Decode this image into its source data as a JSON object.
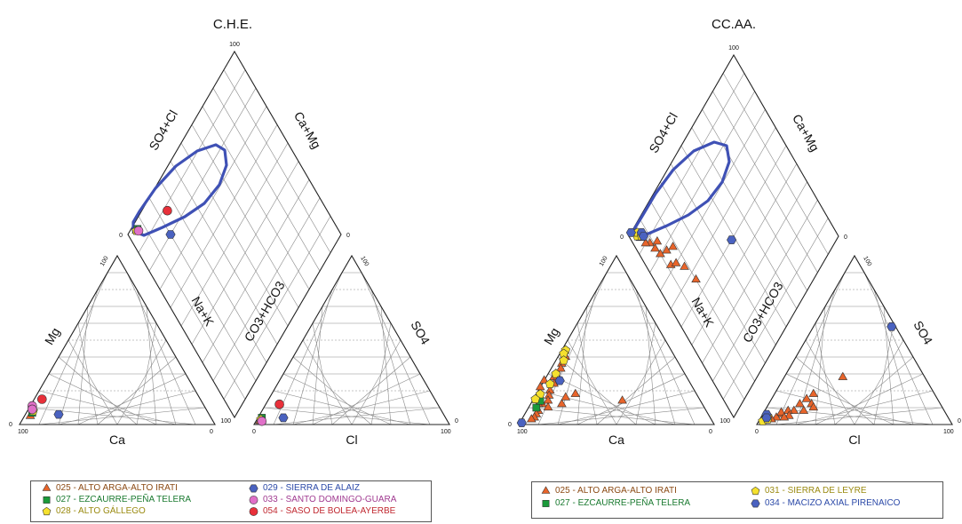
{
  "chart_data": [
    {
      "type": "scatter",
      "subtype": "piper-diagram",
      "title": "C.H.E.",
      "axis_labels": {
        "diamond_upper_left": "SO4+Cl",
        "diamond_upper_right": "Ca+Mg",
        "diamond_lower_left": "Na+K",
        "diamond_lower_right": "CO3+HCO3",
        "cation_left": "Mg",
        "cation_bottom": "Ca",
        "anion_right": "SO4",
        "anion_bottom": "Cl"
      },
      "tick_labels": {
        "diamond_top": "100",
        "diamond_left": "0",
        "diamond_right": "0",
        "diamond_bottom": "100",
        "cation_top": "100",
        "cation_bottom_left": "100",
        "cation_bottom_right": "0",
        "cation_left_corner": "0",
        "anion_top": "100",
        "anion_bottom_left": "0",
        "anion_bottom_right": "100",
        "anion_right_corner": "0"
      },
      "series": [
        {
          "name": "025 - ALTO ARGA-ALTO IRATI",
          "marker": "triangle",
          "color": "#e8642a",
          "text_color": "#8b4a14",
          "cation_points": [
            {
              "ca": 92,
              "mg": 5
            }
          ],
          "anion_points": [
            {
              "cl": 2,
              "so4": 2
            }
          ],
          "diamond_points": [
            {
              "so4_cl": 5,
              "na_k": 3
            }
          ]
        },
        {
          "name": "027 - EZCAURRE-PEÑA TELERA",
          "marker": "square",
          "color": "#1a9a3a",
          "text_color": "#1a7a30",
          "cation_points": [
            {
              "ca": 90,
              "mg": 7
            }
          ],
          "anion_points": [
            {
              "cl": 2,
              "so4": 4
            }
          ],
          "diamond_points": [
            {
              "so4_cl": 6,
              "na_k": 3
            }
          ]
        },
        {
          "name": "028 - ALTO GÁLLEGO",
          "marker": "pentagon",
          "color": "#f5e12e",
          "text_color": "#9a8a10",
          "cation_points": [
            {
              "ca": 89,
              "mg": 8
            }
          ],
          "anion_points": [
            {
              "cl": 2,
              "so4": 3
            }
          ],
          "diamond_points": [
            {
              "so4_cl": 5,
              "na_k": 3
            }
          ]
        },
        {
          "name": "029 - SIERRA DE ALAIZ",
          "marker": "hexagon",
          "color": "#4a62c0",
          "text_color": "#2c4aa8",
          "cation_points": [
            {
              "ca": 77,
              "mg": 6
            }
          ],
          "anion_points": [
            {
              "cl": 13,
              "so4": 4
            }
          ],
          "diamond_points": [
            {
              "so4_cl": 20,
              "na_k": 20
            }
          ]
        },
        {
          "name": "033 - SANTO DOMINGO-GUARA",
          "marker": "circle",
          "color": "#e070c8",
          "text_color": "#a03a90",
          "cation_points": [
            {
              "ca": 88,
              "mg": 11
            },
            {
              "ca": 89,
              "mg": 9
            }
          ],
          "anion_points": [
            {
              "cl": 3,
              "so4": 2
            }
          ],
          "diamond_points": [
            {
              "so4_cl": 6,
              "na_k": 4
            }
          ]
        },
        {
          "name": "054 - SASO DE BOLEA-AYERBE",
          "marker": "circle",
          "color": "#e8303a",
          "text_color": "#c02830",
          "cation_points": [
            {
              "ca": 81,
              "mg": 15
            }
          ],
          "anion_points": [
            {
              "cl": 7,
              "so4": 12
            }
          ],
          "diamond_points": [
            {
              "so4_cl": 25,
              "na_k": 12
            }
          ]
        }
      ],
      "envelope_color": "#3f51b5"
    },
    {
      "type": "scatter",
      "subtype": "piper-diagram",
      "title": "CC.AA.",
      "axis_labels": {
        "diamond_upper_left": "SO4+Cl",
        "diamond_upper_right": "Ca+Mg",
        "diamond_lower_left": "Na+K",
        "diamond_lower_right": "CO3+HCO3",
        "cation_left": "Mg",
        "cation_bottom": "Ca",
        "anion_right": "SO4",
        "anion_bottom": "Cl"
      },
      "tick_labels": {
        "diamond_top": "100",
        "diamond_left": "0",
        "diamond_right": "0",
        "diamond_bottom": "100",
        "cation_top": "100",
        "cation_bottom_left": "100",
        "cation_bottom_right": "0",
        "cation_left_corner": "0",
        "anion_top": "100",
        "anion_bottom_left": "0",
        "anion_bottom_right": "100",
        "anion_right_corner": "0"
      },
      "series": [
        {
          "name": "025 - ALTO ARGA-ALTO IRATI",
          "marker": "triangle",
          "color": "#e8642a",
          "text_color": "#8b4a14",
          "cation_points": [
            {
              "ca": 56,
              "mg": 40
            },
            {
              "ca": 60,
              "mg": 36
            },
            {
              "ca": 62,
              "mg": 33
            },
            {
              "ca": 68,
              "mg": 28
            },
            {
              "ca": 70,
              "mg": 24
            },
            {
              "ca": 74,
              "mg": 20
            },
            {
              "ca": 76,
              "mg": 17
            },
            {
              "ca": 78,
              "mg": 14
            },
            {
              "ca": 82,
              "mg": 12
            },
            {
              "ca": 80,
              "mg": 10
            },
            {
              "ca": 86,
              "mg": 8
            },
            {
              "ca": 88,
              "mg": 6
            },
            {
              "ca": 90,
              "mg": 4
            },
            {
              "ca": 92,
              "mg": 3
            },
            {
              "ca": 72,
              "mg": 12
            },
            {
              "ca": 62,
              "mg": 18
            },
            {
              "ca": 74,
              "mg": 26
            },
            {
              "ca": 66,
              "mg": 30
            },
            {
              "ca": 84,
              "mg": 12
            },
            {
              "ca": 40,
              "mg": 14
            },
            {
              "ca": 68,
              "mg": 16
            },
            {
              "ca": 78,
              "mg": 22
            }
          ],
          "anion_points": [
            {
              "cl": 20,
              "so4": 18
            },
            {
              "cl": 18,
              "so4": 15
            },
            {
              "cl": 22,
              "so4": 12
            },
            {
              "cl": 15,
              "so4": 8
            },
            {
              "cl": 12,
              "so4": 8
            },
            {
              "cl": 20,
              "so4": 8
            },
            {
              "cl": 10,
              "so4": 6
            },
            {
              "cl": 8,
              "so4": 4
            },
            {
              "cl": 14,
              "so4": 5
            },
            {
              "cl": 6,
              "so4": 3
            },
            {
              "cl": 30,
              "so4": 28
            },
            {
              "cl": 24,
              "so4": 10
            },
            {
              "cl": 9,
              "so4": 7
            },
            {
              "cl": 16,
              "so4": 12
            },
            {
              "cl": 12,
              "so4": 4
            }
          ],
          "diamond_points": [
            {
              "so4_cl": 12,
              "na_k": 28
            },
            {
              "so4_cl": 15,
              "na_k": 30
            },
            {
              "so4_cl": 18,
              "na_k": 35
            },
            {
              "so4_cl": 10,
              "na_k": 20
            },
            {
              "so4_cl": 14,
              "na_k": 22
            },
            {
              "so4_cl": 8,
              "na_k": 12
            },
            {
              "so4_cl": 6,
              "na_k": 10
            },
            {
              "so4_cl": 9,
              "na_k": 16
            },
            {
              "so4_cl": 20,
              "na_k": 44
            },
            {
              "so4_cl": 5,
              "na_k": 6
            },
            {
              "so4_cl": 12,
              "na_k": 15
            },
            {
              "so4_cl": 18,
              "na_k": 24
            }
          ]
        },
        {
          "name": "027 - EZCAURRE-PEÑA TELERA",
          "marker": "square",
          "color": "#1a9a3a",
          "text_color": "#1a7a30",
          "cation_points": [
            {
              "ca": 86,
              "mg": 10
            },
            {
              "ca": 82,
              "mg": 14
            }
          ],
          "anion_points": [
            {
              "cl": 3,
              "so4": 3
            }
          ],
          "diamond_points": [
            {
              "so4_cl": 6,
              "na_k": 4
            }
          ]
        },
        {
          "name": "031 - SIERRA DE LEYRE",
          "marker": "pentagon",
          "color": "#f5e12e",
          "text_color": "#9a8a10",
          "cation_points": [
            {
              "ca": 54,
              "mg": 44
            },
            {
              "ca": 56,
              "mg": 42
            },
            {
              "ca": 58,
              "mg": 38
            },
            {
              "ca": 66,
              "mg": 30
            },
            {
              "ca": 72,
              "mg": 24
            },
            {
              "ca": 80,
              "mg": 18
            },
            {
              "ca": 84,
              "mg": 15
            }
          ],
          "anion_points": [
            {
              "cl": 2,
              "so4": 2
            },
            {
              "cl": 4,
              "so4": 3
            },
            {
              "cl": 3,
              "so4": 5
            }
          ],
          "diamond_points": [
            {
              "so4_cl": 4,
              "na_k": 4
            },
            {
              "so4_cl": 5,
              "na_k": 3
            },
            {
              "so4_cl": 6,
              "na_k": 6
            }
          ]
        },
        {
          "name": "034 - MACIZO AXIAL PIRENAICO",
          "marker": "hexagon",
          "color": "#4a62c0",
          "text_color": "#2c4aa8",
          "cation_points": [
            {
              "ca": 66,
              "mg": 26
            },
            {
              "ca": 98,
              "mg": 1
            }
          ],
          "anion_points": [
            {
              "cl": 2,
              "so4": 6
            },
            {
              "cl": 3,
              "so4": 4
            },
            {
              "cl": 40,
              "so4": 58
            }
          ],
          "diamond_points": [
            {
              "so4_cl": 2,
              "na_k": 0
            },
            {
              "so4_cl": 7,
              "na_k": 5
            },
            {
              "so4_cl": 7,
              "na_k": 7
            },
            {
              "so4_cl": 48,
              "na_k": 50
            }
          ]
        }
      ],
      "envelope_color": "#3f51b5"
    }
  ]
}
